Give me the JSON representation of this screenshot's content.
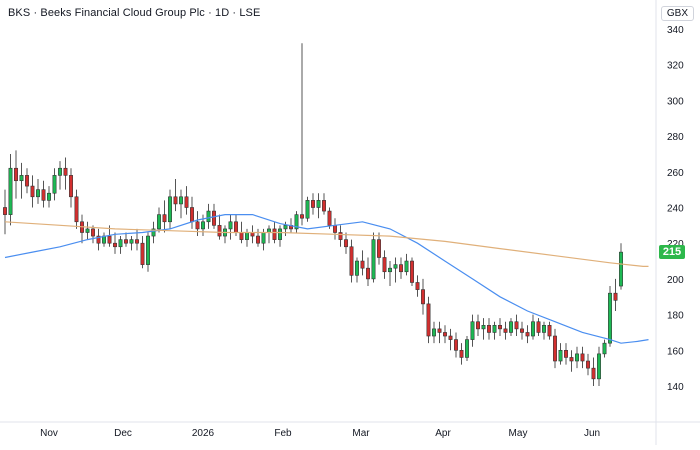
{
  "header": {
    "symbol": "BKS",
    "name": "Beeks Financial Cloud Group Plc",
    "interval": "1D",
    "exchange": "LSE",
    "currency": "GBX"
  },
  "last_price_label": "215",
  "colors": {
    "up": "#26a69a",
    "down": "#ef5350",
    "up_fill": "#1db954",
    "down_fill": "#d32f2f",
    "ma_short": "#4a8ef0",
    "ma_long": "#e0b07a",
    "badge": "#2db84b",
    "wick": "#555555",
    "grid": "#f0f3fa",
    "axis_text": "#131722"
  },
  "chart_data": {
    "type": "candlestick",
    "y_axis": {
      "min": 130,
      "max": 345,
      "ticks": [
        140,
        160,
        180,
        200,
        220,
        240,
        260,
        280,
        300,
        320,
        340
      ],
      "position": "right"
    },
    "x_axis": {
      "labels": [
        "Nov",
        "Dec",
        "2026",
        "Feb",
        "Mar",
        "Apr",
        "May",
        "Jun"
      ]
    },
    "grid": false,
    "series": [
      {
        "name": "",
        "kind": "candles",
        "ohlc": [
          [
            240,
            250,
            225,
            236
          ],
          [
            236,
            270,
            230,
            262
          ],
          [
            262,
            272,
            245,
            255
          ],
          [
            255,
            265,
            245,
            258
          ],
          [
            258,
            262,
            248,
            252
          ],
          [
            252,
            258,
            240,
            246
          ],
          [
            246,
            256,
            242,
            250
          ],
          [
            250,
            255,
            240,
            244
          ],
          [
            244,
            252,
            240,
            248
          ],
          [
            248,
            262,
            244,
            258
          ],
          [
            258,
            266,
            250,
            262
          ],
          [
            262,
            268,
            250,
            258
          ],
          [
            258,
            262,
            240,
            246
          ],
          [
            246,
            250,
            228,
            232
          ],
          [
            232,
            236,
            220,
            226
          ],
          [
            226,
            232,
            222,
            228
          ],
          [
            228,
            230,
            220,
            224
          ],
          [
            224,
            228,
            216,
            220
          ],
          [
            220,
            226,
            218,
            224
          ],
          [
            224,
            230,
            218,
            220
          ],
          [
            220,
            226,
            214,
            218
          ],
          [
            218,
            224,
            214,
            222
          ],
          [
            222,
            226,
            218,
            220
          ],
          [
            220,
            224,
            216,
            222
          ],
          [
            222,
            228,
            216,
            220
          ],
          [
            220,
            224,
            206,
            208
          ],
          [
            208,
            226,
            204,
            224
          ],
          [
            224,
            232,
            220,
            228
          ],
          [
            228,
            240,
            226,
            236
          ],
          [
            236,
            244,
            226,
            232
          ],
          [
            232,
            250,
            228,
            246
          ],
          [
            246,
            256,
            238,
            242
          ],
          [
            242,
            250,
            234,
            246
          ],
          [
            246,
            252,
            236,
            240
          ],
          [
            240,
            246,
            228,
            232
          ],
          [
            232,
            238,
            224,
            228
          ],
          [
            228,
            236,
            224,
            232
          ],
          [
            232,
            242,
            228,
            238
          ],
          [
            238,
            242,
            228,
            230
          ],
          [
            230,
            236,
            222,
            224
          ],
          [
            224,
            230,
            220,
            228
          ],
          [
            228,
            236,
            222,
            232
          ],
          [
            232,
            236,
            224,
            226
          ],
          [
            226,
            232,
            220,
            222
          ],
          [
            222,
            228,
            218,
            226
          ],
          [
            226,
            230,
            220,
            224
          ],
          [
            224,
            228,
            218,
            220
          ],
          [
            220,
            228,
            216,
            226
          ],
          [
            226,
            230,
            220,
            228
          ],
          [
            228,
            232,
            220,
            222
          ],
          [
            222,
            230,
            218,
            228
          ],
          [
            228,
            232,
            224,
            230
          ],
          [
            230,
            234,
            226,
            228
          ],
          [
            228,
            238,
            226,
            236
          ],
          [
            236,
            332,
            230,
            234
          ],
          [
            234,
            246,
            232,
            244
          ],
          [
            244,
            248,
            236,
            240
          ],
          [
            240,
            248,
            234,
            244
          ],
          [
            244,
            248,
            236,
            238
          ],
          [
            238,
            240,
            228,
            230
          ],
          [
            230,
            234,
            222,
            226
          ],
          [
            226,
            230,
            218,
            222
          ],
          [
            222,
            226,
            214,
            218
          ],
          [
            218,
            222,
            198,
            202
          ],
          [
            202,
            212,
            198,
            210
          ],
          [
            210,
            216,
            202,
            206
          ],
          [
            206,
            212,
            196,
            200
          ],
          [
            200,
            226,
            198,
            222
          ],
          [
            222,
            226,
            208,
            212
          ],
          [
            212,
            216,
            200,
            204
          ],
          [
            204,
            210,
            196,
            206
          ],
          [
            206,
            212,
            198,
            208
          ],
          [
            208,
            212,
            200,
            204
          ],
          [
            204,
            214,
            202,
            210
          ],
          [
            210,
            212,
            196,
            198
          ],
          [
            198,
            202,
            190,
            194
          ],
          [
            194,
            200,
            180,
            186
          ],
          [
            186,
            190,
            164,
            168
          ],
          [
            168,
            176,
            164,
            172
          ],
          [
            172,
            176,
            164,
            170
          ],
          [
            170,
            174,
            164,
            168
          ],
          [
            168,
            172,
            160,
            166
          ],
          [
            166,
            170,
            156,
            160
          ],
          [
            160,
            164,
            152,
            156
          ],
          [
            156,
            168,
            154,
            166
          ],
          [
            166,
            180,
            162,
            176
          ],
          [
            176,
            180,
            168,
            172
          ],
          [
            172,
            178,
            166,
            174
          ],
          [
            174,
            178,
            166,
            170
          ],
          [
            170,
            176,
            166,
            174
          ],
          [
            174,
            178,
            168,
            172
          ],
          [
            172,
            176,
            166,
            170
          ],
          [
            170,
            178,
            168,
            176
          ],
          [
            176,
            180,
            168,
            172
          ],
          [
            172,
            176,
            166,
            170
          ],
          [
            170,
            174,
            164,
            168
          ],
          [
            168,
            180,
            166,
            176
          ],
          [
            176,
            178,
            168,
            170
          ],
          [
            170,
            176,
            166,
            174
          ],
          [
            174,
            176,
            166,
            168
          ],
          [
            168,
            172,
            150,
            154
          ],
          [
            154,
            164,
            152,
            160
          ],
          [
            160,
            164,
            152,
            156
          ],
          [
            156,
            160,
            148,
            154
          ],
          [
            154,
            162,
            150,
            158
          ],
          [
            158,
            162,
            150,
            154
          ],
          [
            154,
            158,
            146,
            150
          ],
          [
            150,
            156,
            140,
            144
          ],
          [
            144,
            162,
            140,
            158
          ],
          [
            158,
            166,
            156,
            164
          ],
          [
            164,
            196,
            162,
            192
          ],
          [
            192,
            200,
            182,
            188
          ],
          [
            196,
            220,
            194,
            215
          ]
        ]
      },
      {
        "name": "",
        "kind": "line",
        "color_key": "ma_short",
        "points": [
          [
            0,
            212
          ],
          [
            5,
            215
          ],
          [
            10,
            218
          ],
          [
            15,
            222
          ],
          [
            20,
            225
          ],
          [
            25,
            226
          ],
          [
            30,
            228
          ],
          [
            35,
            233
          ],
          [
            40,
            236
          ],
          [
            45,
            236
          ],
          [
            50,
            231
          ],
          [
            55,
            228
          ],
          [
            60,
            230
          ],
          [
            65,
            232
          ],
          [
            70,
            228
          ],
          [
            75,
            220
          ],
          [
            80,
            210
          ],
          [
            85,
            200
          ],
          [
            90,
            190
          ],
          [
            95,
            182
          ],
          [
            100,
            176
          ],
          [
            105,
            170
          ],
          [
            110,
            166
          ],
          [
            112,
            164
          ],
          [
            115,
            165
          ],
          [
            117,
            166
          ]
        ]
      },
      {
        "name": "",
        "kind": "line",
        "color_key": "ma_long",
        "points": [
          [
            0,
            232
          ],
          [
            10,
            230
          ],
          [
            20,
            228
          ],
          [
            30,
            227
          ],
          [
            40,
            226
          ],
          [
            50,
            226
          ],
          [
            60,
            225
          ],
          [
            70,
            224
          ],
          [
            80,
            221
          ],
          [
            90,
            217
          ],
          [
            100,
            213
          ],
          [
            110,
            209
          ],
          [
            116,
            207
          ],
          [
            117,
            207
          ]
        ]
      }
    ]
  }
}
